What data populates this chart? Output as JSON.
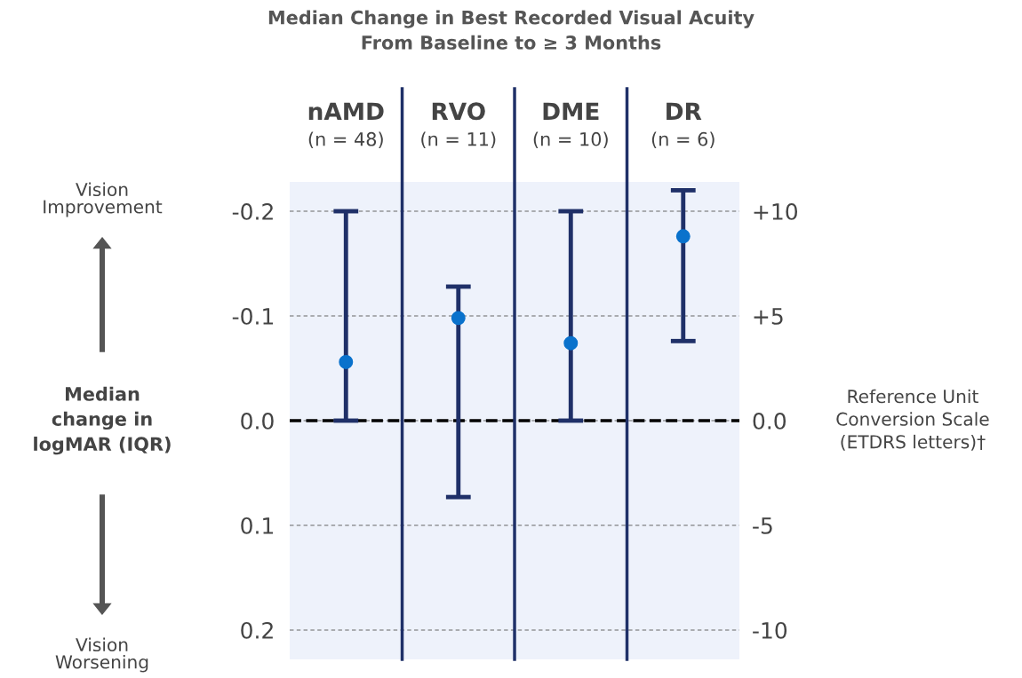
{
  "chart_data": {
    "type": "scatter",
    "title": "Median Change in Best Recorded Visual Acuity\nFrom Baseline to ≥ 3 Months",
    "categories": [
      "nAMD\n(n = 48)",
      "RVO\n(n = 11)",
      "DME\n(n = 10)",
      "DR\n(n = 6)"
    ],
    "series": [
      {
        "color": "#0a72cc",
        "values": [
          -0.056,
          -0.098,
          -0.074,
          -0.176
        ],
        "errors": [
          [
            -0.2,
            0.0
          ],
          [
            -0.128,
            0.073
          ],
          [
            -0.2,
            0.0
          ],
          [
            -0.22,
            -0.076
          ]
        ]
      }
    ],
    "ylabel": "Median\nchange in\nlogMAR (IQR)",
    "y2label": "Reference Unit\nConversion Scale\n(ETDRS letters)†",
    "ylim": [
      0.228,
      -0.228
    ],
    "yticks": [
      {
        "value": -0.2,
        "label": "-0.2"
      },
      {
        "value": -0.1,
        "label": "-0.1"
      },
      {
        "value": 0.0,
        "label": "0.0"
      },
      {
        "value": 0.1,
        "label": "0.1"
      },
      {
        "value": 0.2,
        "label": "0.2"
      }
    ],
    "y2lim": [
      -11.4,
      11.4
    ],
    "y2ticks": [
      {
        "value": 10,
        "label": "+10"
      },
      {
        "value": 5,
        "label": "+5"
      },
      {
        "value": 0,
        "label": "0.0"
      },
      {
        "value": -5,
        "label": "-5"
      },
      {
        "value": -10,
        "label": "-10"
      }
    ],
    "ref_lines": [
      {
        "axis": "y",
        "value": 0,
        "color": "#000000",
        "line_style": "dashed"
      }
    ],
    "annotations": [
      "Vision\nImprovement",
      "Vision\nWorsening"
    ],
    "grid": "y",
    "marker": "circle",
    "legend": false
  }
}
